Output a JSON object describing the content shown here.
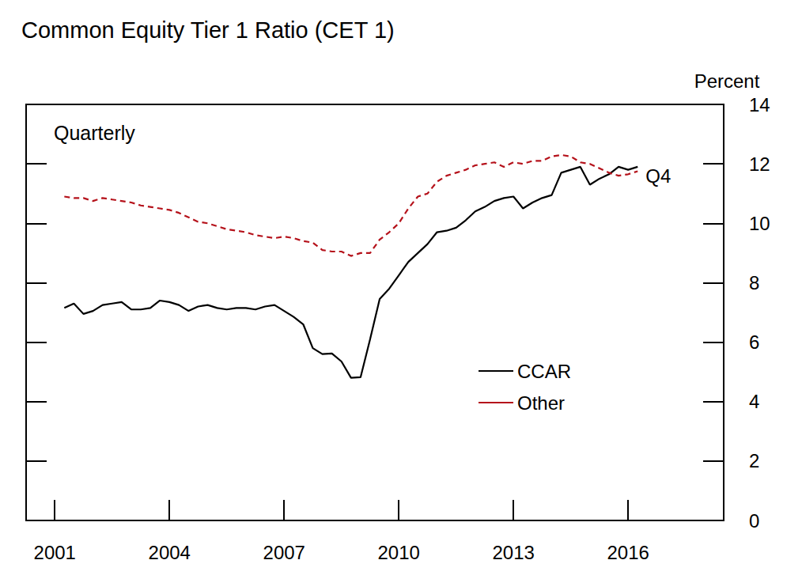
{
  "chart_data": {
    "type": "line",
    "title": "Common Equity Tier 1 Ratio (CET 1)",
    "y_label": "Percent",
    "annotations": [
      "Quarterly",
      "Q4"
    ],
    "x": [
      2001.25,
      2001.5,
      2001.75,
      2002.0,
      2002.25,
      2002.5,
      2002.75,
      2003.0,
      2003.25,
      2003.5,
      2003.75,
      2004.0,
      2004.25,
      2004.5,
      2004.75,
      2005.0,
      2005.25,
      2005.5,
      2005.75,
      2006.0,
      2006.25,
      2006.5,
      2006.75,
      2007.0,
      2007.25,
      2007.5,
      2007.75,
      2008.0,
      2008.25,
      2008.5,
      2008.75,
      2009.0,
      2009.25,
      2009.5,
      2009.75,
      2010.0,
      2010.25,
      2010.5,
      2010.75,
      2011.0,
      2011.25,
      2011.5,
      2011.75,
      2012.0,
      2012.25,
      2012.5,
      2012.75,
      2013.0,
      2013.25,
      2013.5,
      2013.75,
      2014.0,
      2014.25,
      2014.5,
      2014.75,
      2015.0,
      2015.25,
      2015.5,
      2015.75,
      2016.0,
      2016.25
    ],
    "series": [
      {
        "name": "CCAR",
        "color": "#000000",
        "line_style": "solid",
        "values": [
          7.15,
          7.3,
          6.95,
          7.05,
          7.25,
          7.3,
          7.35,
          7.1,
          7.1,
          7.15,
          7.4,
          7.35,
          7.25,
          7.05,
          7.2,
          7.25,
          7.15,
          7.1,
          7.15,
          7.15,
          7.1,
          7.2,
          7.25,
          7.05,
          6.85,
          6.6,
          5.8,
          5.6,
          5.62,
          5.35,
          4.8,
          4.82,
          6.1,
          7.45,
          7.8,
          8.25,
          8.7,
          9.0,
          9.3,
          9.7,
          9.75,
          9.85,
          10.1,
          10.4,
          10.55,
          10.75,
          10.85,
          10.9,
          10.5,
          10.7,
          10.85,
          10.95,
          11.7,
          11.8,
          11.9,
          11.3,
          11.5,
          11.65,
          11.9,
          11.8,
          11.9
        ]
      },
      {
        "name": "Other",
        "color": "#b5121b",
        "line_style": "dashed",
        "values": [
          10.9,
          10.85,
          10.85,
          10.75,
          10.85,
          10.8,
          10.75,
          10.7,
          10.6,
          10.55,
          10.5,
          10.45,
          10.35,
          10.2,
          10.05,
          10.0,
          9.9,
          9.8,
          9.75,
          9.7,
          9.6,
          9.55,
          9.5,
          9.55,
          9.5,
          9.4,
          9.35,
          9.1,
          9.05,
          9.05,
          8.9,
          9.0,
          9.0,
          9.45,
          9.7,
          10.0,
          10.5,
          10.9,
          11.0,
          11.4,
          11.6,
          11.7,
          11.8,
          11.95,
          12.0,
          12.05,
          11.9,
          12.05,
          12.0,
          12.1,
          12.1,
          12.25,
          12.3,
          12.25,
          12.05,
          12.0,
          11.85,
          11.7,
          11.6,
          11.65,
          11.75
        ]
      }
    ],
    "xlim": [
      2000.25,
      2018.5
    ],
    "xticks": [
      2001,
      2004,
      2007,
      2010,
      2013,
      2016
    ],
    "ylim": [
      0,
      14
    ],
    "yticks": [
      0,
      2,
      4,
      6,
      8,
      10,
      12,
      14
    ],
    "grid": false,
    "legend": "bottom"
  }
}
